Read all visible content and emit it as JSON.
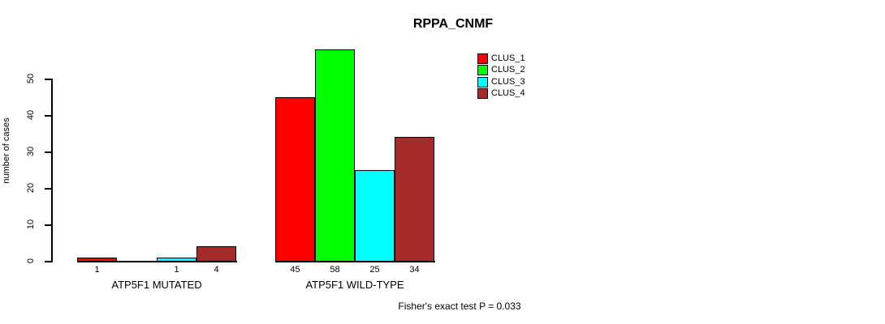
{
  "chart_data": {
    "type": "bar",
    "title": "RPPA_CNMF",
    "ylabel": "number of cases",
    "xlabel": "",
    "ylim": [
      0,
      58
    ],
    "yticks": [
      0,
      10,
      20,
      30,
      40,
      50
    ],
    "grid": false,
    "legend_position": "top-right",
    "categories": [
      "ATP5F1 MUTATED",
      "ATP5F1 WILD-TYPE"
    ],
    "series": [
      {
        "name": "CLUS_1",
        "color": "#FF0000",
        "values": [
          1,
          45
        ]
      },
      {
        "name": "CLUS_2",
        "color": "#00FF00",
        "values": [
          0,
          58
        ]
      },
      {
        "name": "CLUS_3",
        "color": "#00FFFF",
        "values": [
          1,
          25
        ]
      },
      {
        "name": "CLUS_4",
        "color": "#A52A2A",
        "values": [
          4,
          34
        ]
      }
    ],
    "bar_value_labels": [
      [
        "1",
        "",
        "1",
        "4"
      ],
      [
        "45",
        "58",
        "25",
        "34"
      ]
    ],
    "footnote": "Fisher's exact test P = 0.033",
    "background_color": "#FFFFFF",
    "axis_color": "#000000"
  }
}
